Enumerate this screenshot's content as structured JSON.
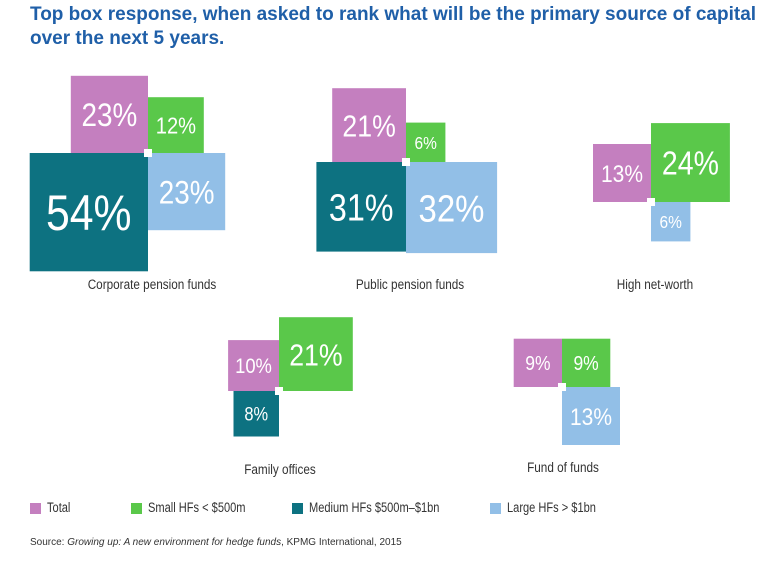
{
  "title": "Top box response, when asked to rank what will be the primary source of capital over the next 5 years.",
  "colors": {
    "Total": "#c47fbf",
    "Small HFs < $500m": "#5ac84a",
    "Medium HFs $500m–$1bn": "#0d7281",
    "Large HFs > $1bn": "#92bfe7"
  },
  "chart_data": {
    "type": "proportional-area",
    "unit": "%",
    "series_names": [
      "Total",
      "Small HFs < $500m",
      "Medium HFs $500m–$1bn",
      "Large HFs > $1bn"
    ],
    "groups": [
      {
        "name": "Corporate pension funds",
        "values": [
          23,
          12,
          54,
          23
        ],
        "labels": [
          "23%",
          "12%",
          "54%",
          "23%"
        ]
      },
      {
        "name": "Public pension funds",
        "values": [
          21,
          6,
          31,
          32
        ],
        "labels": [
          "21%",
          "6%",
          "31%",
          "32%"
        ]
      },
      {
        "name": "High net-worth",
        "values": [
          13,
          24,
          null,
          6
        ],
        "labels": [
          "13%",
          "24%",
          "",
          "6%"
        ]
      },
      {
        "name": "Family offices",
        "values": [
          10,
          21,
          8,
          null
        ],
        "labels": [
          "10%",
          "21%",
          "8%",
          ""
        ]
      },
      {
        "name": "Fund of funds",
        "values": [
          9,
          9,
          null,
          13
        ],
        "labels": [
          "9%",
          "9%",
          "",
          "13%"
        ]
      }
    ]
  },
  "legend": [
    {
      "label": "Total",
      "color": "#c47fbf"
    },
    {
      "label": "Small HFs < $500m",
      "color": "#5ac84a"
    },
    {
      "label": "Medium HFs $500m–$1bn",
      "color": "#0d7281"
    },
    {
      "label": "Large HFs > $1bn",
      "color": "#92bfe7"
    }
  ],
  "source": {
    "prefix": "Source: ",
    "italic": "Growing up: A new environment for hedge funds",
    "suffix": ", KPMG International, 2015"
  }
}
